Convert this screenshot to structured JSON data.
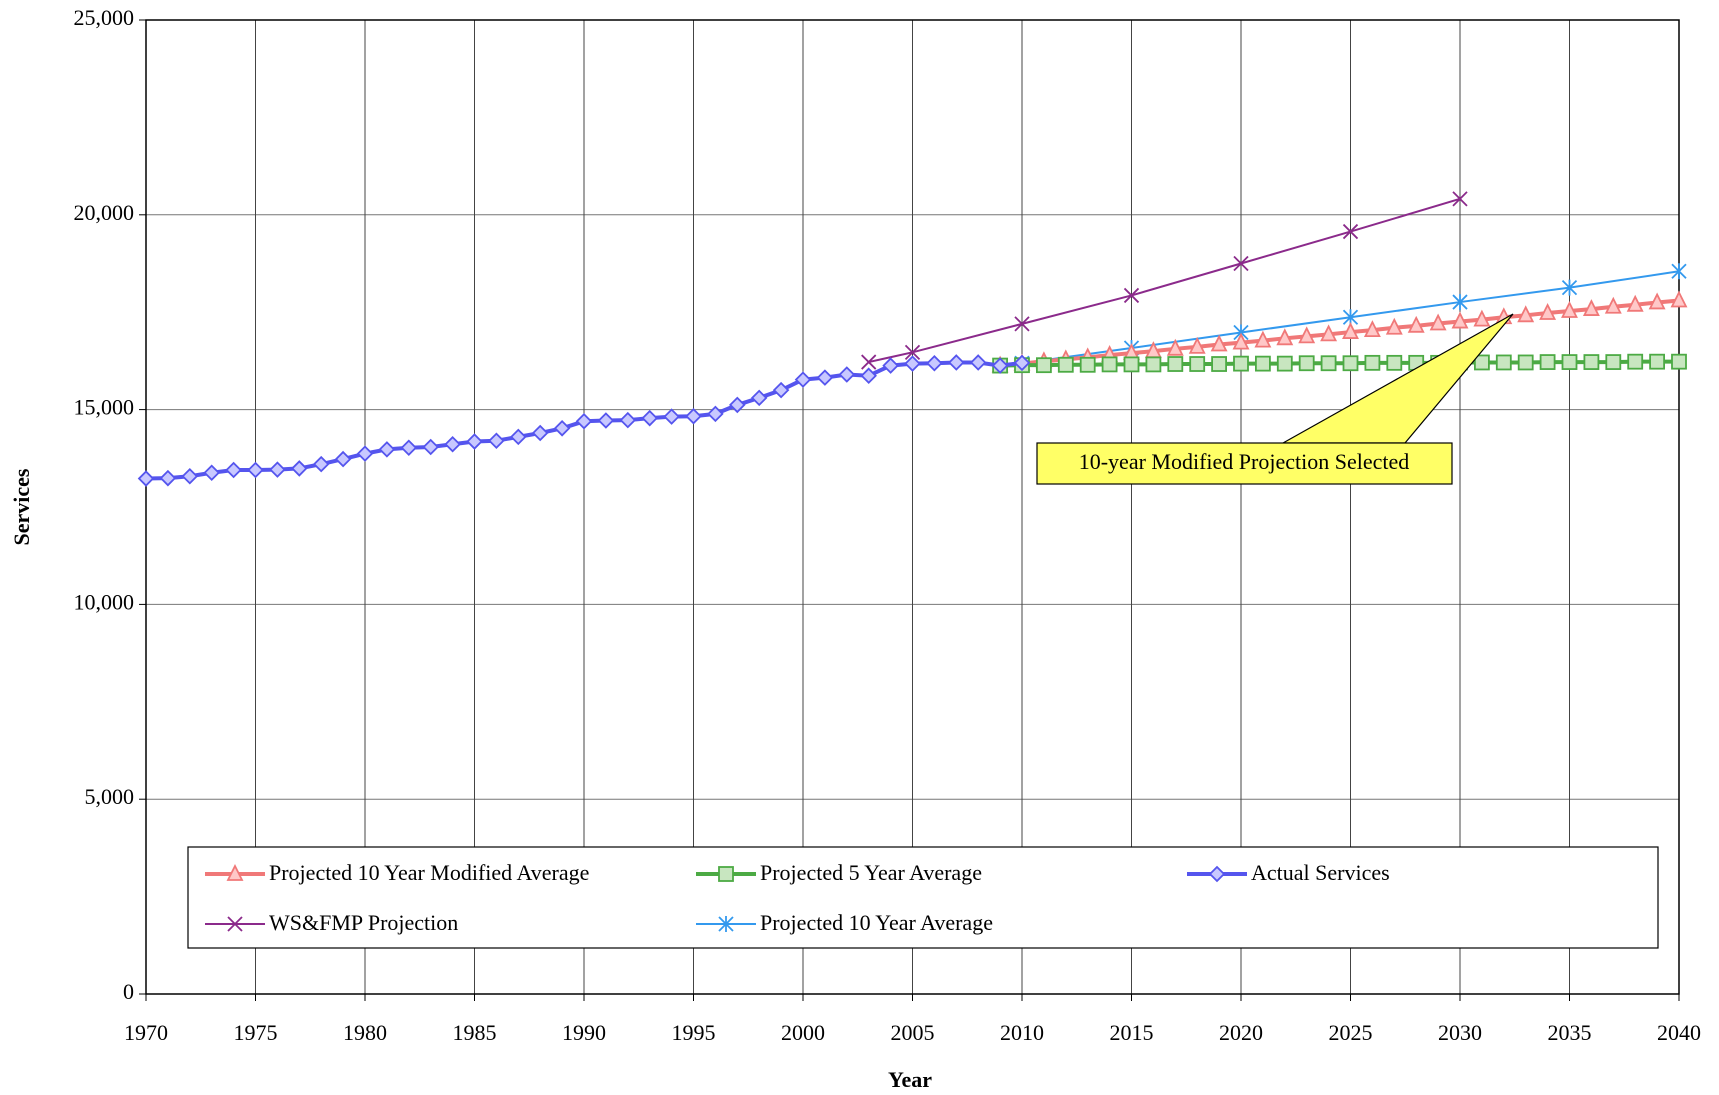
{
  "chart_data": {
    "type": "line",
    "xlabel": "Year",
    "ylabel": "Services",
    "xlim": [
      1970,
      2040
    ],
    "xticks": [
      1970,
      1975,
      1980,
      1985,
      1990,
      1995,
      2000,
      2005,
      2010,
      2015,
      2020,
      2025,
      2030,
      2035,
      2040
    ],
    "ylim": [
      0,
      25000
    ],
    "yticks": [
      0,
      {
        "value": 5000,
        "label": "5,000"
      },
      {
        "value": 10000,
        "label": "10,000"
      },
      {
        "value": 15000,
        "label": "15,000"
      },
      {
        "value": 20000,
        "label": "20,000"
      },
      {
        "value": 25000,
        "label": "25,000"
      }
    ],
    "grid": true,
    "legend": "bottom",
    "annotation": "10-year Modified Projection Selected",
    "series": [
      {
        "name": "Projected 10 Year Modified Average",
        "color": "#f07878",
        "fill": "#ffc8c8",
        "marker": "triangle",
        "line_width": 4,
        "x": [
          2009,
          2010,
          2011,
          2012,
          2013,
          2014,
          2015,
          2016,
          2017,
          2018,
          2019,
          2020,
          2021,
          2022,
          2023,
          2024,
          2025,
          2026,
          2027,
          2028,
          2029,
          2030,
          2031,
          2032,
          2033,
          2034,
          2035,
          2036,
          2037,
          2038,
          2039,
          2040
        ],
        "values": [
          16130,
          16180,
          16240,
          16290,
          16340,
          16400,
          16450,
          16500,
          16560,
          16610,
          16670,
          16720,
          16770,
          16830,
          16880,
          16930,
          16990,
          17040,
          17100,
          17150,
          17210,
          17260,
          17310,
          17370,
          17420,
          17480,
          17530,
          17580,
          17640,
          17690,
          17750,
          17800
        ]
      },
      {
        "name": "Projected 5 Year Average",
        "color": "#4caa44",
        "fill": "#c8e6c0",
        "marker": "square",
        "line_width": 4,
        "x": [
          2009,
          2010,
          2011,
          2012,
          2013,
          2014,
          2015,
          2016,
          2017,
          2018,
          2019,
          2020,
          2021,
          2022,
          2023,
          2024,
          2025,
          2026,
          2027,
          2028,
          2029,
          2030,
          2031,
          2032,
          2033,
          2034,
          2035,
          2036,
          2037,
          2038,
          2039,
          2040
        ],
        "values": [
          16130,
          16140,
          16140,
          16150,
          16150,
          16160,
          16160,
          16160,
          16170,
          16170,
          16170,
          16180,
          16180,
          16180,
          16190,
          16190,
          16190,
          16200,
          16200,
          16200,
          16200,
          16210,
          16210,
          16210,
          16210,
          16220,
          16220,
          16220,
          16220,
          16230,
          16230,
          16230
        ]
      },
      {
        "name": "Actual Services",
        "color": "#5555ee",
        "fill": "#c8c8ff",
        "marker": "diamond",
        "line_width": 4,
        "x": [
          1970,
          1971,
          1972,
          1973,
          1974,
          1975,
          1976,
          1977,
          1978,
          1979,
          1980,
          1981,
          1982,
          1983,
          1984,
          1985,
          1986,
          1987,
          1988,
          1989,
          1990,
          1991,
          1992,
          1993,
          1994,
          1995,
          1996,
          1997,
          1998,
          1999,
          2000,
          2001,
          2002,
          2003,
          2004,
          2005,
          2006,
          2007,
          2008,
          2009,
          2010
        ],
        "values": [
          13230,
          13240,
          13290,
          13380,
          13450,
          13450,
          13460,
          13490,
          13600,
          13730,
          13870,
          13980,
          14020,
          14040,
          14110,
          14180,
          14200,
          14300,
          14400,
          14520,
          14700,
          14720,
          14730,
          14780,
          14820,
          14830,
          14890,
          15120,
          15300,
          15500,
          15770,
          15820,
          15900,
          15870,
          16130,
          16180,
          16190,
          16210,
          16210,
          16130,
          16200
        ]
      },
      {
        "name": "WS&FMP Projection",
        "color": "#8b2a8b",
        "marker": "x",
        "line_width": 2,
        "x": [
          2003,
          2005,
          2010,
          2015,
          2020,
          2025,
          2030
        ],
        "values": [
          16220,
          16470,
          17200,
          17930,
          18750,
          19570,
          20410
        ]
      },
      {
        "name": "Projected 10 Year Average",
        "color": "#3399ee",
        "marker": "asterisk",
        "line_width": 2,
        "x": [
          2010,
          2015,
          2020,
          2025,
          2030,
          2035,
          2040
        ],
        "values": [
          16190,
          16580,
          16980,
          17370,
          17760,
          18130,
          18550
        ]
      }
    ]
  }
}
